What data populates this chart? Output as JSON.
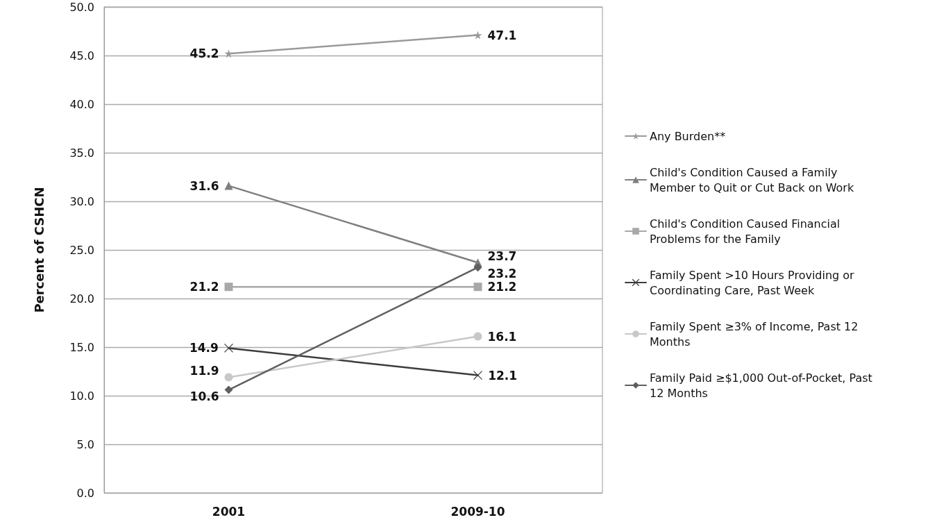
{
  "chart_data": {
    "type": "line",
    "ylabel": "Percent of CSHCN",
    "categories": [
      "2001",
      "2009-10"
    ],
    "series": [
      {
        "name": "Any Burden**",
        "color": "#9a9a9a",
        "marker": "star",
        "values": [
          45.2,
          47.1
        ]
      },
      {
        "name": "Child's Condition Caused a Family Member to Quit or Cut Back on Work",
        "color": "#7f7f7f",
        "marker": "triangle",
        "values": [
          31.6,
          23.7
        ]
      },
      {
        "name": "Child's Condition Caused Financial Problems for the Family",
        "color": "#a8a8a8",
        "marker": "square",
        "values": [
          21.2,
          21.2
        ]
      },
      {
        "name": "Family Spent >10 Hours Providing or Coordinating Care, Past Week",
        "color": "#3c3c3c",
        "marker": "cross",
        "values": [
          14.9,
          12.1
        ]
      },
      {
        "name": "Family Spent ≥3% of Income, Past 12 Months",
        "color": "#c8c8c8",
        "marker": "circle",
        "values": [
          11.9,
          16.1
        ]
      },
      {
        "name": "Family Paid ≥$1,000 Out-of-Pocket, Past 12 Months",
        "color": "#5f5f5f",
        "marker": "diamond",
        "values": [
          10.6,
          23.2
        ]
      }
    ],
    "ylim": [
      0,
      50
    ],
    "yticks": [
      {
        "value": 0,
        "label": "0.0"
      },
      {
        "value": 5,
        "label": "5.0"
      },
      {
        "value": 10,
        "label": "10.0"
      },
      {
        "value": 15,
        "label": "15.0"
      },
      {
        "value": 20,
        "label": "20.0"
      },
      {
        "value": 25,
        "label": "25.0"
      },
      {
        "value": 30,
        "label": "30.0"
      },
      {
        "value": 35,
        "label": "35.0"
      },
      {
        "value": 40,
        "label": "40.0"
      },
      {
        "value": 45,
        "label": "45.0"
      },
      {
        "value": 50,
        "label": "50.0"
      }
    ],
    "grid": "y",
    "legend": "right",
    "data_labels": true,
    "line_style": "solid"
  }
}
